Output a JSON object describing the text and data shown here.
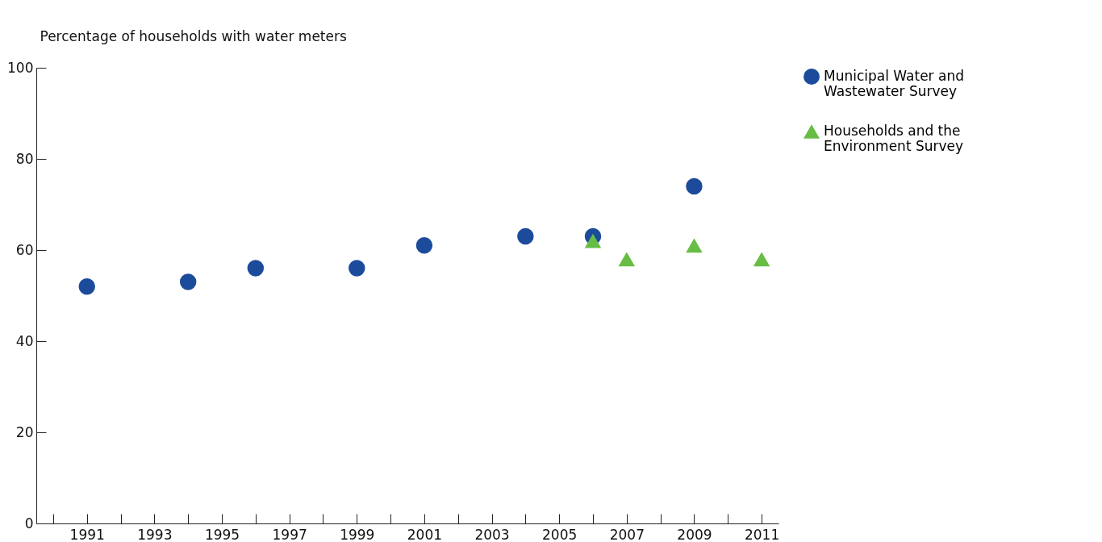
{
  "chart_data": {
    "type": "scatter",
    "ylabel": "Percentage of households with water meters",
    "xlim": [
      1989.5,
      2011.5
    ],
    "xticks": [
      {
        "value": 1990,
        "label": null
      },
      1991,
      {
        "value": 1992,
        "label": null
      },
      1993,
      {
        "value": 1994,
        "label": null
      },
      1995,
      {
        "value": 1996,
        "label": null
      },
      1997,
      {
        "value": 1998,
        "label": null
      },
      1999,
      {
        "value": 2000,
        "label": null
      },
      2001,
      {
        "value": 2002,
        "label": null
      },
      2003,
      {
        "value": 2004,
        "label": null
      },
      2005,
      {
        "value": 2006,
        "label": null
      },
      2007,
      {
        "value": 2008,
        "label": null
      },
      2009,
      {
        "value": 2010,
        "label": null
      },
      2011
    ],
    "ylim": [
      0,
      100
    ],
    "yticks": [
      0,
      20,
      40,
      60,
      80,
      100
    ],
    "grid": false,
    "legend": "right",
    "series": [
      {
        "name": "Municipal Water and Wastewater Survey",
        "color": "#1d4b9b",
        "marker": "circle",
        "x": [
          1991,
          1994,
          1996,
          1999,
          2001,
          2004,
          2006,
          2009
        ],
        "values": [
          52,
          53,
          56,
          56,
          61,
          63,
          63,
          74
        ]
      },
      {
        "name": "Households and the Environment Survey",
        "color": "#67bd45",
        "marker": "triangle",
        "x": [
          2006,
          2007,
          2009,
          2011
        ],
        "values": [
          62,
          58,
          61,
          58
        ]
      }
    ]
  }
}
